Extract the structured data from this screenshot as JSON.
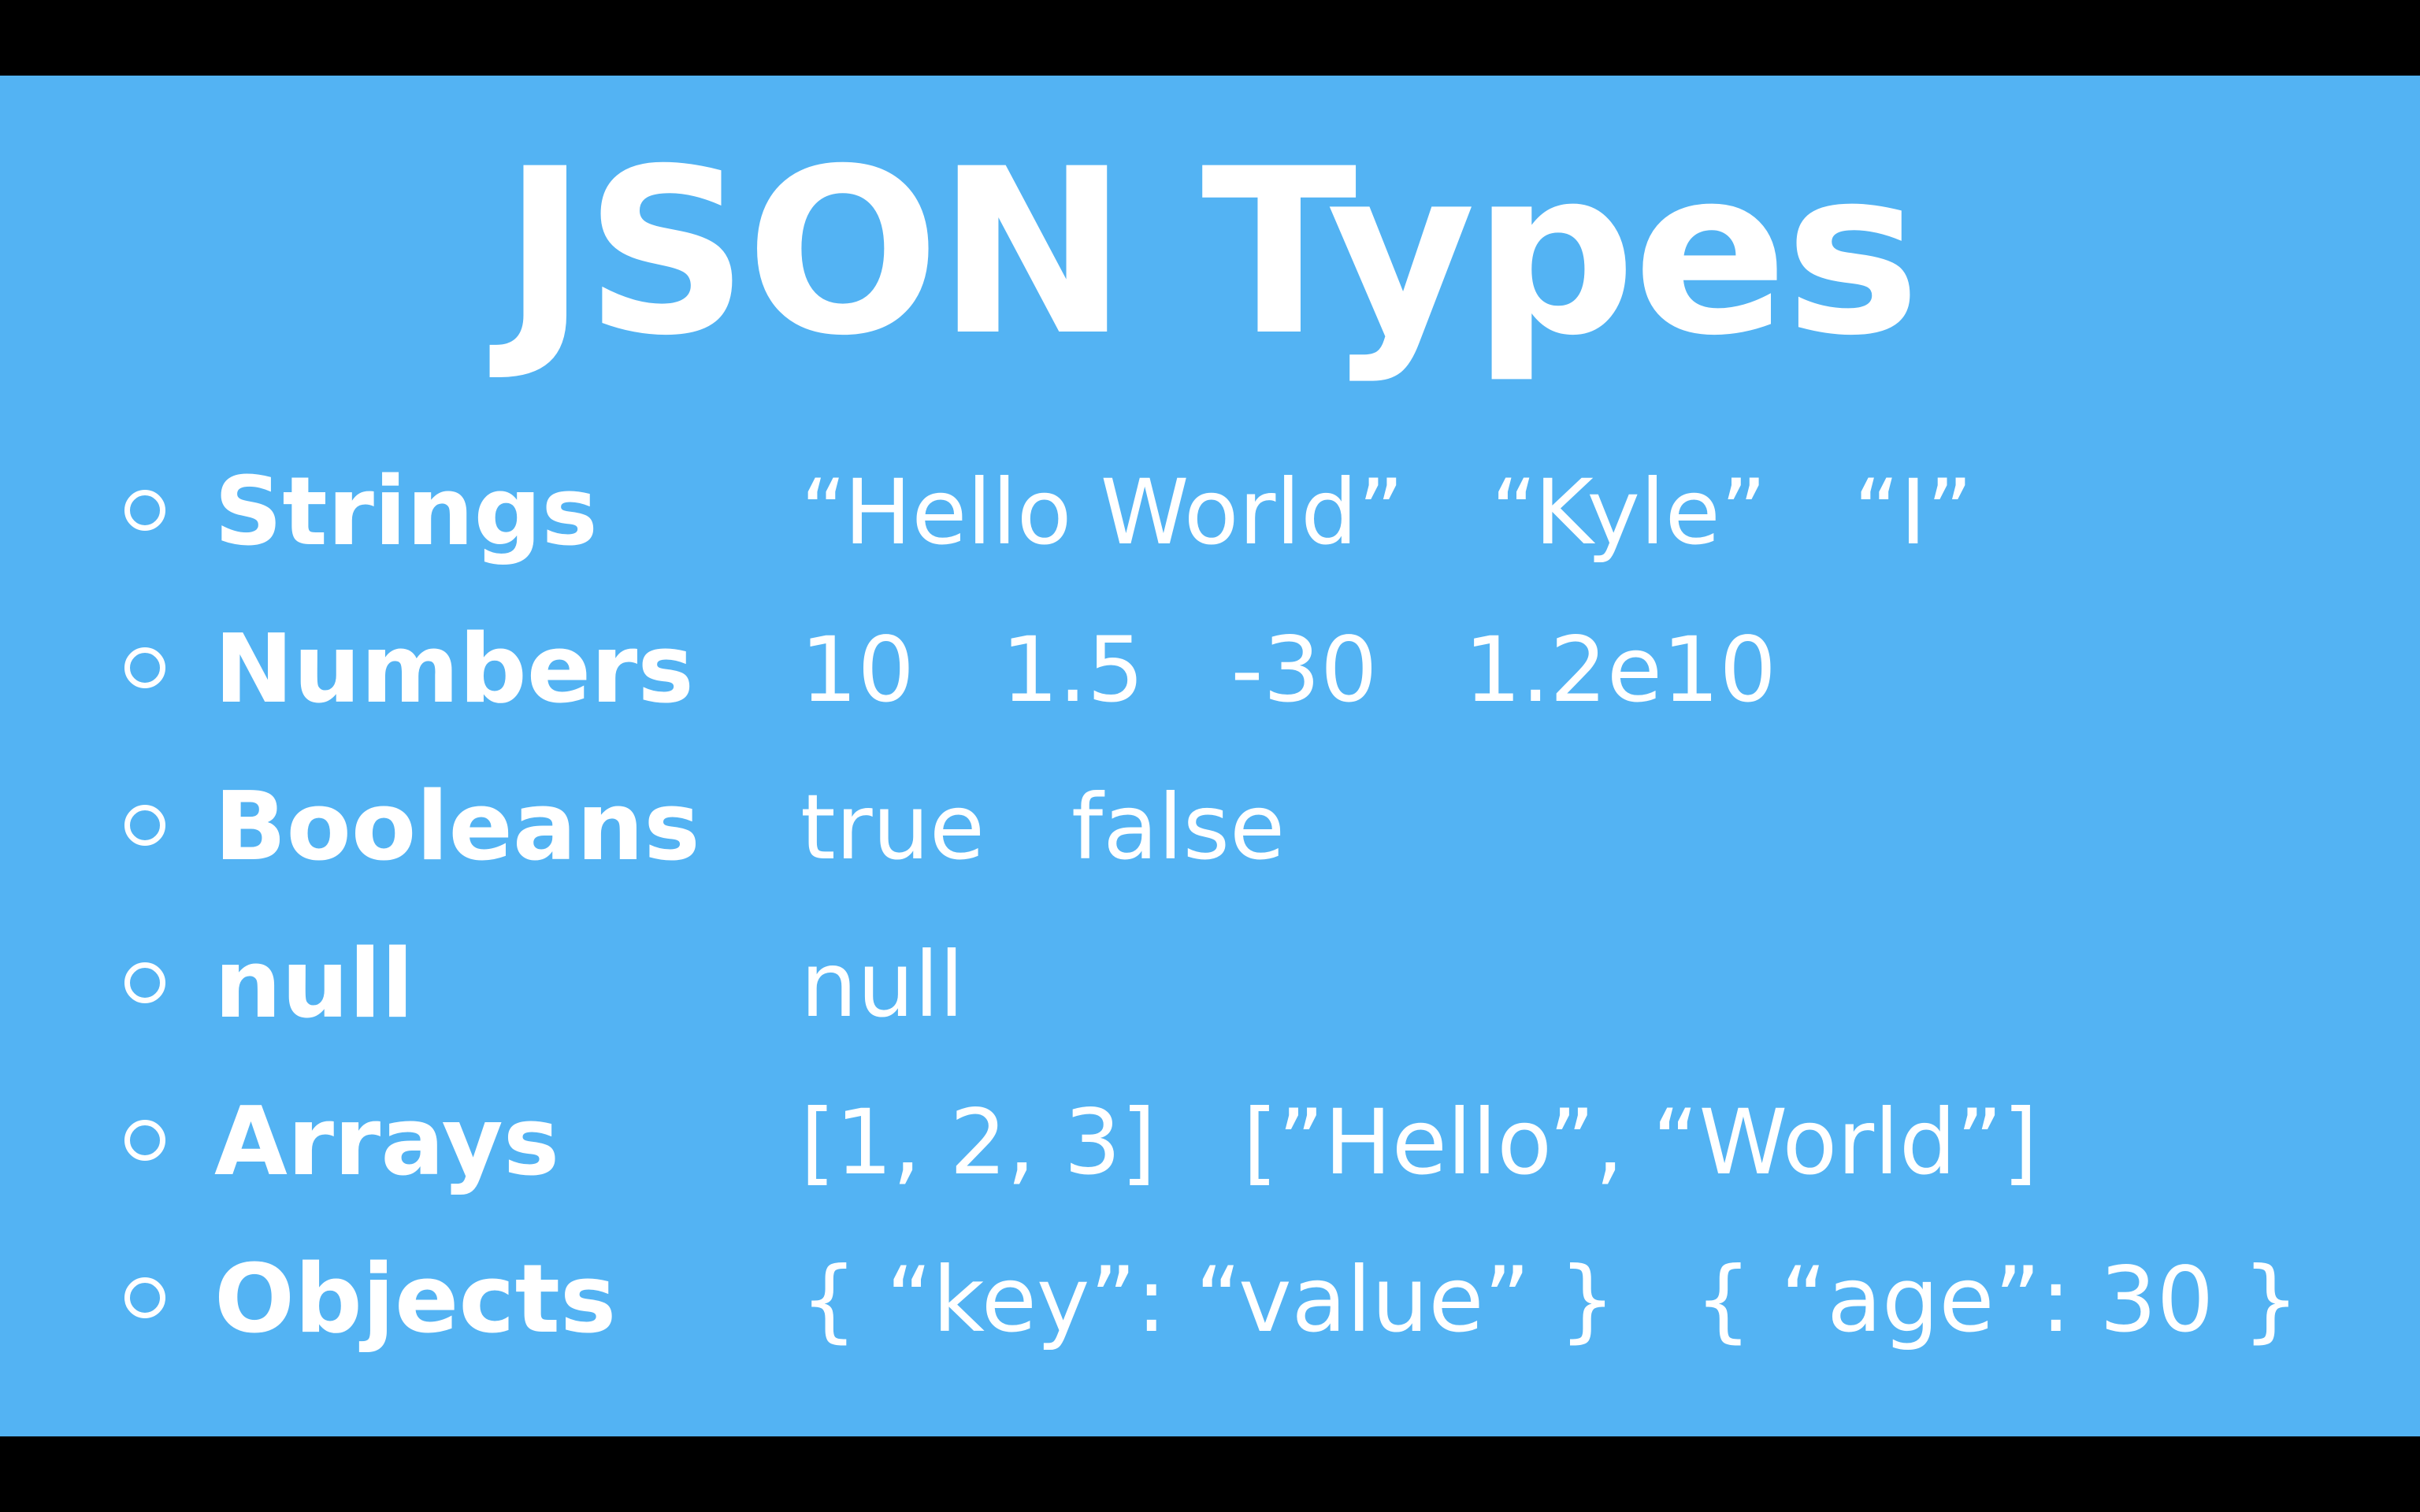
{
  "slide": {
    "title": "JSON Types",
    "background_color": "#53b3f3",
    "text_color": "#ffffff",
    "rows": [
      {
        "label": "Strings",
        "examples": [
          "“Hello World”",
          "“Kyle”",
          "“I”"
        ]
      },
      {
        "label": "Numbers",
        "examples": [
          "10",
          "1.5",
          "-30",
          "1.2e10"
        ]
      },
      {
        "label": "Booleans",
        "examples": [
          "true",
          "false"
        ]
      },
      {
        "label": "null",
        "examples": [
          "null"
        ]
      },
      {
        "label": "Arrays",
        "examples": [
          "[1, 2, 3]",
          "[”Hello”, “World”]"
        ]
      },
      {
        "label": "Objects",
        "examples": [
          "{ “key”: “value” }",
          "{ “age”: 30 }"
        ]
      }
    ]
  },
  "icons": {
    "bullet": "hollow-circle-icon"
  }
}
